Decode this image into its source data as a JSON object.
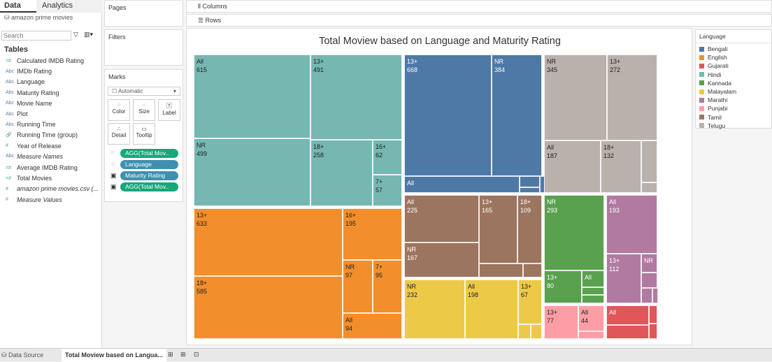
{
  "left": {
    "tabs": [
      "Data",
      "Analytics"
    ],
    "datasource": "amazon prime movies",
    "search_placeholder": "Search",
    "tables_label": "Tables",
    "fields": [
      {
        "name": "Calculated IMDB Rating",
        "type": "measure",
        "italic": false
      },
      {
        "name": "IMDb Rating",
        "type": "abc",
        "italic": false
      },
      {
        "name": "Language",
        "type": "abc",
        "italic": false
      },
      {
        "name": "Maturity Rating",
        "type": "abc",
        "italic": false
      },
      {
        "name": "Movie Name",
        "type": "abc",
        "italic": false
      },
      {
        "name": "Plot",
        "type": "abc",
        "italic": false
      },
      {
        "name": "Running Time",
        "type": "abc",
        "italic": false
      },
      {
        "name": "Running Time (group)",
        "type": "group",
        "italic": false
      },
      {
        "name": "Year of Release",
        "type": "number",
        "italic": false
      },
      {
        "name": "Measure Names",
        "type": "abc",
        "italic": true
      },
      {
        "name": "Average IMDB Rating",
        "type": "measure",
        "italic": false
      },
      {
        "name": "Total Movies",
        "type": "measure",
        "italic": false
      },
      {
        "name": "amazon prime movies.csv (...",
        "type": "number",
        "italic": true
      },
      {
        "name": "Measure Values",
        "type": "number",
        "italic": true
      }
    ]
  },
  "panels": {
    "pages": "Pages",
    "filters": "Filters",
    "marks": "Marks",
    "mark_type": "Automatic",
    "mark_buttons": [
      "Color",
      "Size",
      "Label",
      "Detail",
      "Tooltip"
    ],
    "pills": [
      {
        "label": "AGG(Total Mov..",
        "color": "#16a77b"
      },
      {
        "label": "Language",
        "color": "#3f8fb0"
      },
      {
        "label": "Maturity Rating",
        "color": "#3f8fb0"
      },
      {
        "label": "AGG(Total Mov..",
        "color": "#16a77b"
      }
    ]
  },
  "shelves": {
    "columns": "Columns",
    "rows": "Rows"
  },
  "chart_data": {
    "type": "treemap",
    "title": "Total Moview based on Language and Maturity Rating",
    "legend_title": "Language",
    "legend": [
      {
        "name": "Bengali",
        "color": "#4e79a7"
      },
      {
        "name": "English",
        "color": "#f28e2b"
      },
      {
        "name": "Gujarati",
        "color": "#e15759"
      },
      {
        "name": "Hindi",
        "color": "#76b7b2"
      },
      {
        "name": "Kannada",
        "color": "#59a14f"
      },
      {
        "name": "Malayalam",
        "color": "#edc948"
      },
      {
        "name": "Marathi",
        "color": "#b07aa1"
      },
      {
        "name": "Punjabi",
        "color": "#ff9da7"
      },
      {
        "name": "Tamil",
        "color": "#9c755f"
      },
      {
        "name": "Telugu",
        "color": "#bab0ac"
      }
    ],
    "cells": [
      {
        "language": "Hindi",
        "rating": "All",
        "value": "615"
      },
      {
        "language": "Hindi",
        "rating": "NR",
        "value": "499"
      },
      {
        "language": "Hindi",
        "rating": "13+",
        "value": "491"
      },
      {
        "language": "Hindi",
        "rating": "18+",
        "value": "258"
      },
      {
        "language": "Hindi",
        "rating": "16+",
        "value": "62"
      },
      {
        "language": "Hindi",
        "rating": "7+",
        "value": "57"
      },
      {
        "language": "English",
        "rating": "13+",
        "value": "633"
      },
      {
        "language": "English",
        "rating": "18+",
        "value": "585"
      },
      {
        "language": "English",
        "rating": "16+",
        "value": "195"
      },
      {
        "language": "English",
        "rating": "NR",
        "value": "97"
      },
      {
        "language": "English",
        "rating": "7+",
        "value": "95"
      },
      {
        "language": "English",
        "rating": "All",
        "value": "94"
      },
      {
        "language": "Bengali",
        "rating": "13+",
        "value": "668"
      },
      {
        "language": "Bengali",
        "rating": "NR",
        "value": "384"
      },
      {
        "language": "Bengali",
        "rating": "All",
        "value": ""
      },
      {
        "language": "Telugu",
        "rating": "NR",
        "value": "345"
      },
      {
        "language": "Telugu",
        "rating": "13+",
        "value": "272"
      },
      {
        "language": "Telugu",
        "rating": "All",
        "value": "187"
      },
      {
        "language": "Telugu",
        "rating": "18+",
        "value": "132"
      },
      {
        "language": "Tamil",
        "rating": "All",
        "value": "225"
      },
      {
        "language": "Tamil",
        "rating": "NR",
        "value": "167"
      },
      {
        "language": "Tamil",
        "rating": "13+",
        "value": "165"
      },
      {
        "language": "Tamil",
        "rating": "18+",
        "value": "109"
      },
      {
        "language": "Malayalam",
        "rating": "NR",
        "value": "232"
      },
      {
        "language": "Malayalam",
        "rating": "All",
        "value": "198"
      },
      {
        "language": "Malayalam",
        "rating": "13+",
        "value": "67"
      },
      {
        "language": "Kannada",
        "rating": "NR",
        "value": "293"
      },
      {
        "language": "Kannada",
        "rating": "13+",
        "value": "80"
      },
      {
        "language": "Kannada",
        "rating": "All",
        "value": ""
      },
      {
        "language": "Marathi",
        "rating": "All",
        "value": "193"
      },
      {
        "language": "Marathi",
        "rating": "13+",
        "value": "112"
      },
      {
        "language": "Marathi",
        "rating": "NR",
        "value": ""
      },
      {
        "language": "Punjabi",
        "rating": "13+",
        "value": "77"
      },
      {
        "language": "Punjabi",
        "rating": "All",
        "value": "44"
      },
      {
        "language": "Gujarati",
        "rating": "All",
        "value": ""
      }
    ]
  },
  "bottom": {
    "data_source": "Data Source",
    "sheet": "Total Moview based on Langua..."
  }
}
